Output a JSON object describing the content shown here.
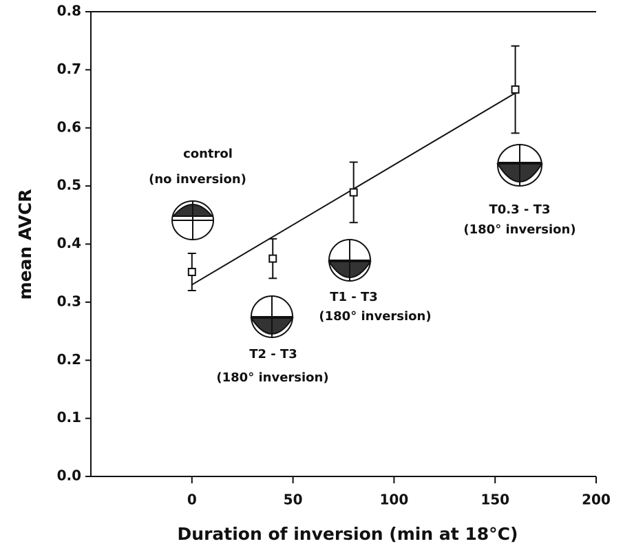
{
  "chart_data": {
    "type": "scatter",
    "x_label": "Duration of inversion (min at 18°C)",
    "y_label": "mean AVCR",
    "xlim": [
      -50,
      200
    ],
    "xticks": [
      0,
      50,
      100,
      150,
      200
    ],
    "ylim": [
      0,
      0.8
    ],
    "yticks": [
      {
        "value": 0,
        "label": "0.0"
      },
      0.1,
      0.2,
      0.3,
      0.4,
      0.5,
      0.6,
      0.7,
      0.8
    ],
    "series": [
      {
        "x": [
          0,
          40,
          80,
          160
        ],
        "values": [
          0.352,
          0.375,
          0.489,
          0.666
        ],
        "errors": [
          0.032,
          0.034,
          0.052,
          0.075
        ],
        "color": "#111111"
      }
    ],
    "fit_line": {
      "x": [
        0,
        160
      ],
      "y": [
        0.33,
        0.66
      ]
    },
    "annotations": [
      "control",
      "(no inversion)",
      "T2 - T3",
      "(180° inversion)",
      "T1 - T3",
      "(180° inversion)",
      "T0.3 - T3",
      "(180° inversion)"
    ]
  }
}
